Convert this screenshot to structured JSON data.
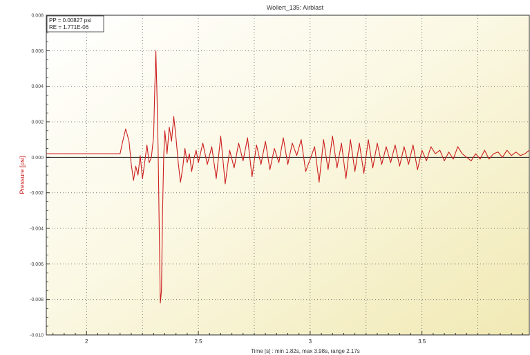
{
  "window": {
    "title": "Wollert_135: Airblast"
  },
  "info_box": {
    "pp": "PP = 0.00827 psi",
    "re": "RE = 1.771E-06"
  },
  "chart_data": {
    "type": "line",
    "title": "Wollert_135: Airblast",
    "xlabel": "Time [s] : min 1.82s, max 3.98s, range 2.17s",
    "ylabel": "Pressure [psi]",
    "xlim": [
      1.82,
      3.98
    ],
    "ylim": [
      -0.01,
      0.008
    ],
    "grid": true,
    "zero_line": true,
    "x_ticks": [
      2,
      2.5,
      3,
      3.5
    ],
    "x_tick_labels": [
      "2",
      "2.5",
      "3",
      "3.5"
    ],
    "y_ticks": [
      0.008,
      0.006,
      0.004,
      0.002,
      0.0,
      -0.002,
      -0.004,
      -0.006,
      -0.008,
      -0.01
    ],
    "y_tick_labels": [
      "0.008",
      "0.006",
      "0.004",
      "0.002",
      "0.000",
      "-0.002",
      "-0.004",
      "-0.006",
      "-0.008",
      "-0.010"
    ],
    "series": [
      {
        "color": "#cc1f1f",
        "x": [
          1.82,
          1.9,
          2.0,
          2.1,
          2.15,
          2.16,
          2.175,
          2.19,
          2.2,
          2.21,
          2.22,
          2.23,
          2.24,
          2.25,
          2.26,
          2.27,
          2.28,
          2.29,
          2.3,
          2.305,
          2.31,
          2.315,
          2.32,
          2.325,
          2.33,
          2.335,
          2.34,
          2.345,
          2.35,
          2.36,
          2.37,
          2.38,
          2.39,
          2.4,
          2.41,
          2.42,
          2.43,
          2.44,
          2.45,
          2.46,
          2.47,
          2.48,
          2.49,
          2.5,
          2.52,
          2.54,
          2.56,
          2.58,
          2.6,
          2.62,
          2.64,
          2.66,
          2.68,
          2.7,
          2.72,
          2.74,
          2.76,
          2.78,
          2.8,
          2.82,
          2.84,
          2.86,
          2.88,
          2.9,
          2.92,
          2.94,
          2.96,
          2.98,
          3.0,
          3.02,
          3.04,
          3.06,
          3.08,
          3.1,
          3.12,
          3.14,
          3.16,
          3.18,
          3.2,
          3.22,
          3.24,
          3.26,
          3.28,
          3.3,
          3.32,
          3.34,
          3.36,
          3.38,
          3.4,
          3.42,
          3.44,
          3.46,
          3.48,
          3.5,
          3.52,
          3.54,
          3.56,
          3.58,
          3.6,
          3.62,
          3.64,
          3.66,
          3.68,
          3.7,
          3.72,
          3.74,
          3.76,
          3.78,
          3.8,
          3.82,
          3.84,
          3.86,
          3.88,
          3.9,
          3.92,
          3.94,
          3.96,
          3.98
        ],
        "y": [
          0.0002,
          0.0002,
          0.0002,
          0.0002,
          0.0002,
          0.0008,
          0.0016,
          0.0009,
          -0.0004,
          -0.0013,
          -0.0005,
          -0.001,
          0.0001,
          -0.0012,
          -0.0003,
          0.0007,
          -0.0003,
          0.0,
          0.0012,
          0.0038,
          0.006,
          0.0035,
          0.0005,
          -0.004,
          -0.0082,
          -0.0075,
          -0.003,
          0.0,
          0.0015,
          0.0002,
          0.0017,
          0.0009,
          0.0023,
          0.0011,
          -0.0003,
          -0.0014,
          -0.0006,
          0.0005,
          -0.0003,
          0.0002,
          -0.0008,
          -0.0001,
          0.0004,
          -0.0003,
          0.0008,
          -0.0004,
          0.0006,
          -0.0012,
          0.0012,
          -0.0015,
          0.0004,
          -0.0006,
          0.0008,
          -0.0002,
          0.0011,
          -0.0011,
          0.0007,
          -0.0004,
          0.0009,
          -0.0007,
          0.0005,
          -0.0003,
          0.0011,
          -0.0004,
          0.0008,
          0.0001,
          0.001,
          -0.0008,
          -0.0001,
          0.0006,
          -0.0014,
          0.001,
          -0.0007,
          0.0012,
          -0.0006,
          0.0008,
          -0.0012,
          0.001,
          -0.0008,
          0.0008,
          -0.0009,
          0.001,
          -0.0006,
          0.0008,
          -0.0004,
          0.0006,
          -0.0003,
          0.0007,
          -0.0005,
          0.0006,
          -0.0004,
          0.0007,
          -0.0007,
          0.0004,
          -0.0002,
          0.0006,
          0.0002,
          0.0004,
          -0.0002,
          0.0003,
          -0.0001,
          0.0006,
          0.0002,
          0.0,
          -0.0002,
          0.0002,
          -0.0001,
          0.0004,
          -0.0001,
          0.0002,
          0.0003,
          0.0,
          0.0004,
          0.0001,
          0.0003,
          0.0001,
          0.0002,
          0.0004
        ]
      }
    ]
  }
}
